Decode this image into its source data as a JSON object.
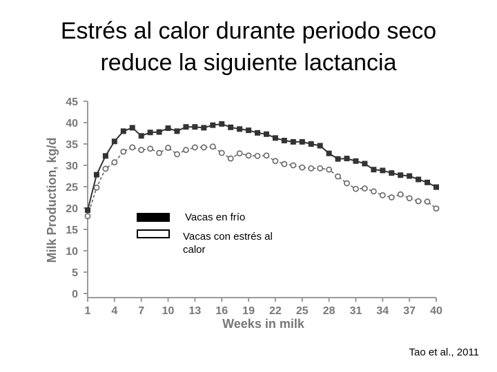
{
  "title": {
    "line1": "Estrés al calor durante periodo seco",
    "line2": "reduce la siguiente lactancia"
  },
  "legend": {
    "cool_label": "Vacas en frío",
    "heat_label_line1": "Vacas con estrés al",
    "heat_label_line2": "calor"
  },
  "citation": "Tao et al., 2011",
  "colors": {
    "cool": "#333333",
    "heat": "#666666",
    "axis": "#9a9a9a"
  },
  "chart_data": {
    "type": "line",
    "xlabel": "Weeks in milk",
    "ylabel": "Milk Production, kg/d",
    "xlim": [
      1,
      40
    ],
    "ylim": [
      0,
      45
    ],
    "xticks": [
      1,
      4,
      7,
      10,
      13,
      16,
      19,
      22,
      25,
      28,
      31,
      34,
      37,
      40
    ],
    "yticks": [
      0,
      5,
      10,
      15,
      20,
      25,
      30,
      35,
      40,
      45
    ],
    "x": [
      1,
      2,
      3,
      4,
      5,
      6,
      7,
      8,
      9,
      10,
      11,
      12,
      13,
      14,
      15,
      16,
      17,
      18,
      19,
      20,
      21,
      22,
      23,
      24,
      25,
      26,
      27,
      28,
      29,
      30,
      31,
      32,
      33,
      34,
      35,
      36,
      37,
      38,
      39,
      40
    ],
    "series": [
      {
        "name": "Vacas en frío",
        "marker": "filled-square",
        "values": [
          19.5,
          27.8,
          32.2,
          35.6,
          38.0,
          38.8,
          36.9,
          37.7,
          37.8,
          38.7,
          38.0,
          39.0,
          39.0,
          38.8,
          39.4,
          39.7,
          38.9,
          38.5,
          38.2,
          37.6,
          37.3,
          36.4,
          35.8,
          35.5,
          35.5,
          35.0,
          34.6,
          32.8,
          31.5,
          31.6,
          31.0,
          30.4,
          29.0,
          28.8,
          28.2,
          27.7,
          27.5,
          26.7,
          26.0,
          24.9
        ]
      },
      {
        "name": "Vacas con estrés al calor",
        "marker": "open-circle",
        "values": [
          18.1,
          24.8,
          29.2,
          30.7,
          33.2,
          34.2,
          33.6,
          33.9,
          32.9,
          34.1,
          32.6,
          33.6,
          34.2,
          34.2,
          34.4,
          32.9,
          31.6,
          32.8,
          32.3,
          32.2,
          32.3,
          31.0,
          30.3,
          30.0,
          29.5,
          29.3,
          29.3,
          29.0,
          27.4,
          25.8,
          24.5,
          24.6,
          23.9,
          23.0,
          22.5,
          23.2,
          22.3,
          21.6,
          21.5,
          19.9
        ]
      }
    ]
  }
}
